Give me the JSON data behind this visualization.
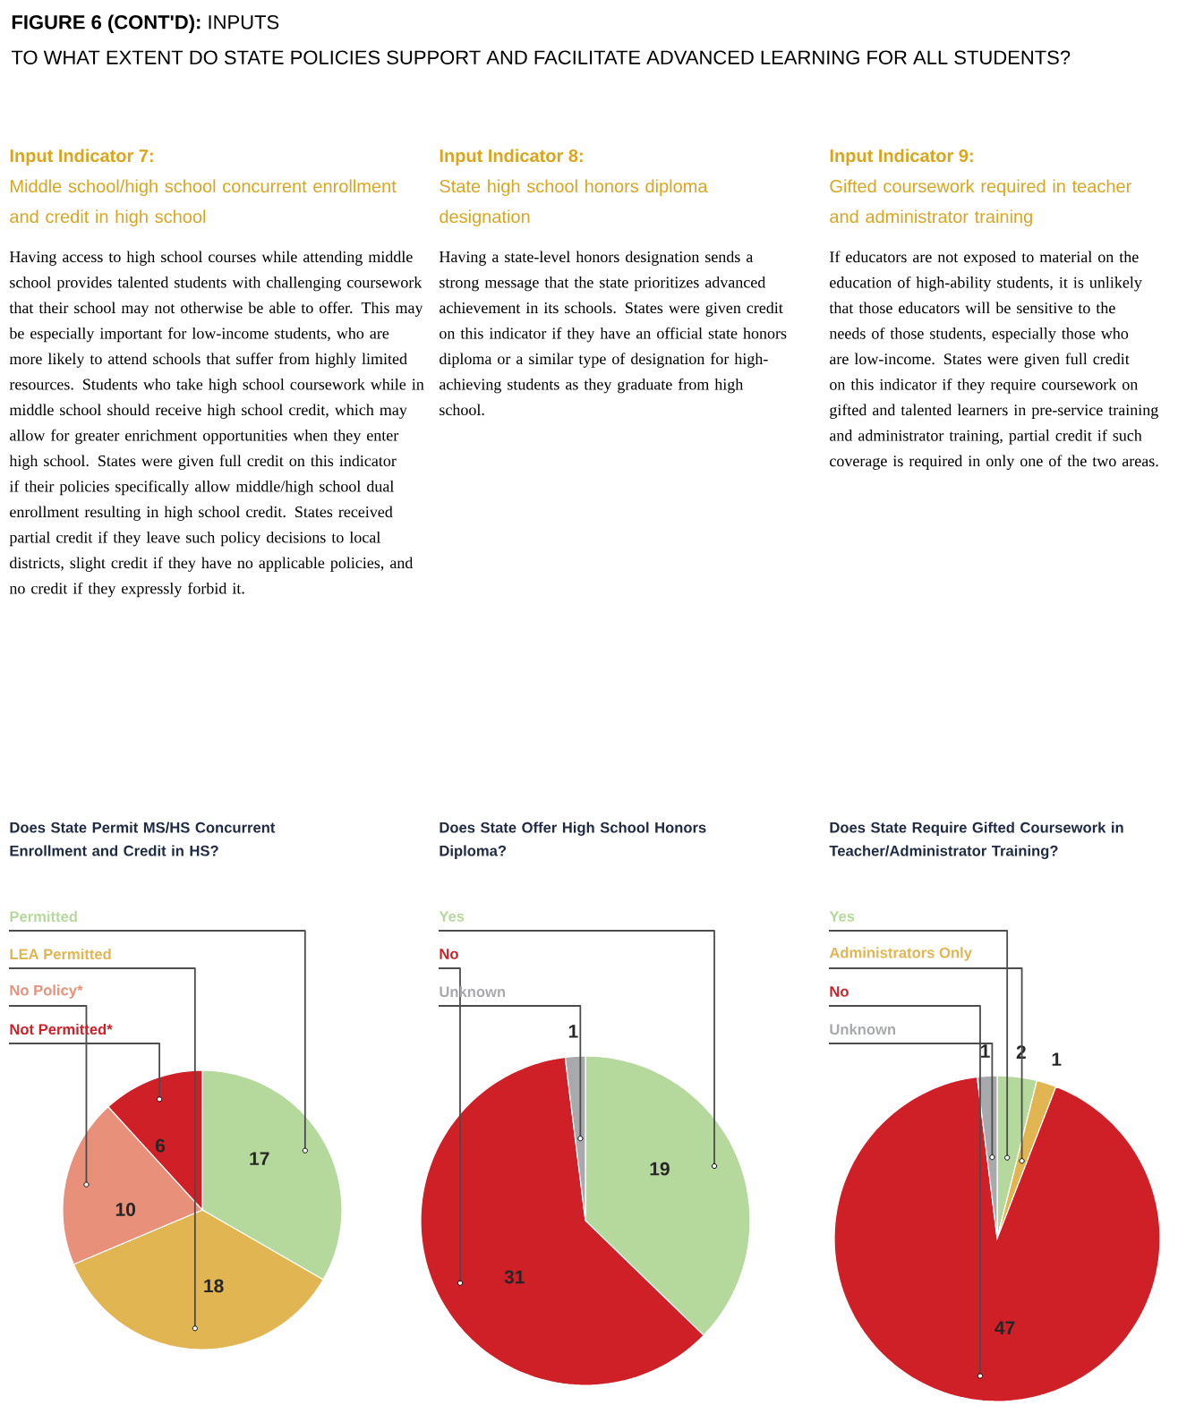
{
  "chart_data": [
    {
      "type": "pie",
      "title": "Does State Permit MS/HS Concurrent Enrollment and Credit in HS?",
      "annotations": [
        "**FIGURE 6 (CONT'D):** INPUTS",
        "TO WHAT EXTENT DO STATE POLICIES SUPPORT AND FACILITATE ADVANCED LEARNING FOR ALL STUDENTS?",
        "Input Indicator 7:",
        "Middle school/high school concurrent enrollment and credit in high school",
        "Having access to high school courses while attending middle school provides talented students with challenging coursework that their school may not otherwise be able to offer. This may be especially important for low-income students, who are more likely to attend schools that suffer from highly limited resources. Students who take high school coursework while in middle school should receive high school credit, which may allow for greater enrichment opportunities when they enter high school. States were given full credit on this indicator if their policies specifically allow middle/high school dual enrollment resulting in high school credit. States received partial credit if they leave such policy decisions to local districts, slight credit if they have no applicable policies, and no credit if they expressly forbid it."
      ],
      "categories": [
        "Permitted",
        "LEA Permitted",
        "No Policy*",
        "Not Permitted*"
      ],
      "values": [
        17,
        18,
        10,
        6
      ],
      "colors": [
        "#b5d99c",
        "#e2b553",
        "#e8907a",
        "#d02027"
      ],
      "data_labels": true
    },
    {
      "type": "pie",
      "title": "Does State Offer High School Honors Diploma?",
      "annotations": [
        "Input Indicator 8:",
        "State high school honors diploma designation",
        "Having a state-level honors designation sends a strong message that the state prioritizes advanced achievement in its schools. States were given credit on this indicator if they have an official state honors diploma or a similar type of designation for high-achieving students as they graduate from high school."
      ],
      "categories": [
        "Yes",
        "No",
        "Unknown"
      ],
      "values": [
        19,
        31,
        1
      ],
      "colors": [
        "#b5d99c",
        "#d02027",
        "#a7a9ac"
      ],
      "data_labels": true
    },
    {
      "type": "pie",
      "title": "Does State Require Gifted Coursework in Teacher/Administrator Training?",
      "annotations": [
        "Input Indicator 9:",
        "Gifted coursework required in teacher and administrator training",
        "If educators are not exposed to material on the education of high-ability students, it is unlikely that those educators will be sensitive to the needs of those students, especially those who are low-income. States were given full credit on this indicator if they require coursework on gifted and talented learners in pre-service training and administrator training, partial credit if such coverage is required in only one of the two areas."
      ],
      "categories": [
        "Yes",
        "Administrators Only",
        "No",
        "Unknown"
      ],
      "values": [
        2,
        1,
        47,
        1
      ],
      "colors": [
        "#b5d99c",
        "#e2b553",
        "#d02027",
        "#a7a9ac"
      ],
      "data_labels": true
    }
  ]
}
